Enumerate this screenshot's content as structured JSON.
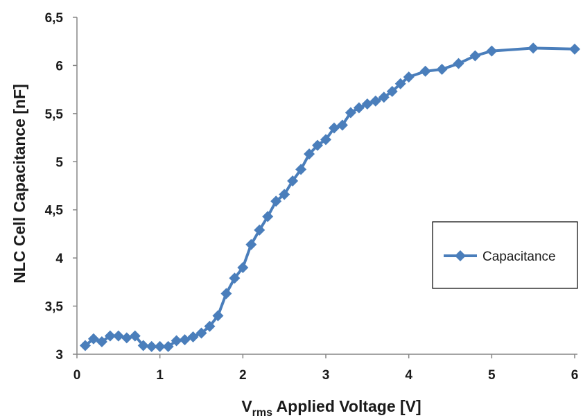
{
  "chart_data": {
    "type": "line",
    "title": "",
    "xlabel_main": "V",
    "xlabel_sub": "rms",
    "xlabel_rest": " Applied Voltage [V]",
    "ylabel": "NLC Cell Capacitance [nF]",
    "xlim": [
      0,
      6
    ],
    "ylim": [
      3,
      6.5
    ],
    "x_ticks": [
      "0",
      "1",
      "2",
      "3",
      "4",
      "5",
      "6"
    ],
    "y_ticks": [
      "3",
      "3,5",
      "4",
      "4,5",
      "5",
      "5,5",
      "6",
      "6,5"
    ],
    "grid": false,
    "legend_position": "right",
    "marker": "diamond",
    "color": "#4a7ebb",
    "series": [
      {
        "name": "Capacitance",
        "x": [
          0.1,
          0.2,
          0.3,
          0.4,
          0.5,
          0.6,
          0.7,
          0.8,
          0.9,
          1.0,
          1.1,
          1.2,
          1.3,
          1.4,
          1.5,
          1.6,
          1.7,
          1.8,
          1.9,
          2.0,
          2.1,
          2.2,
          2.3,
          2.4,
          2.5,
          2.6,
          2.7,
          2.8,
          2.9,
          3.0,
          3.1,
          3.2,
          3.3,
          3.4,
          3.5,
          3.6,
          3.7,
          3.8,
          3.9,
          4.0,
          4.2,
          4.4,
          4.6,
          4.8,
          5.0,
          5.5,
          6.0
        ],
        "y": [
          3.09,
          3.16,
          3.13,
          3.19,
          3.19,
          3.17,
          3.19,
          3.09,
          3.08,
          3.08,
          3.08,
          3.14,
          3.15,
          3.18,
          3.22,
          3.29,
          3.4,
          3.63,
          3.79,
          3.9,
          4.14,
          4.29,
          4.43,
          4.59,
          4.66,
          4.8,
          4.92,
          5.08,
          5.17,
          5.23,
          5.35,
          5.38,
          5.51,
          5.56,
          5.6,
          5.63,
          5.67,
          5.73,
          5.81,
          5.88,
          5.94,
          5.96,
          6.02,
          6.1,
          6.15,
          6.18,
          6.17
        ]
      }
    ]
  }
}
